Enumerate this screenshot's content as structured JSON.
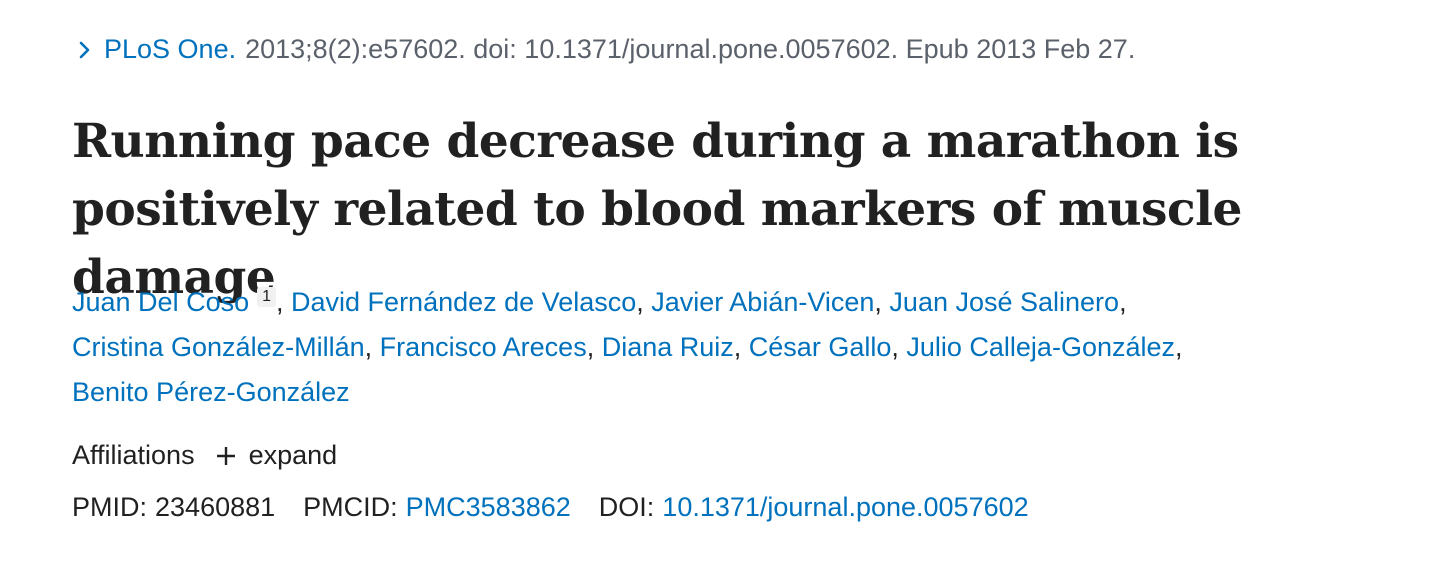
{
  "citation": {
    "journal": "PLoS One.",
    "details": "2013;8(2):e57602. doi: 10.1371/journal.pone.0057602. Epub 2013 Feb 27."
  },
  "title": "Running pace decrease during a marathon is positively related to blood markers of muscle damage",
  "authors": [
    {
      "name": "Juan Del Coso",
      "aff": "1"
    },
    {
      "name": "David Fernández de Velasco"
    },
    {
      "name": "Javier Abián-Vicen"
    },
    {
      "name": "Juan José Salinero"
    },
    {
      "name": "Cristina González-Millán"
    },
    {
      "name": "Francisco Areces"
    },
    {
      "name": "Diana Ruiz"
    },
    {
      "name": "César Gallo"
    },
    {
      "name": "Julio Calleja-González"
    },
    {
      "name": "Benito Pérez-González"
    }
  ],
  "affiliations": {
    "label": "Affiliations",
    "expand_label": "expand"
  },
  "ids": {
    "pmid_label": "PMID:",
    "pmid": "23460881",
    "pmcid_label": "PMCID:",
    "pmcid": "PMC3583862",
    "doi_label": "DOI:",
    "doi": "10.1371/journal.pone.0057602"
  },
  "icons": {
    "journal_toggle": "chevron-right-icon",
    "expand": "plus-icon"
  },
  "colors": {
    "link": "#0071bc",
    "text": "#212121",
    "muted": "#5b616b"
  }
}
